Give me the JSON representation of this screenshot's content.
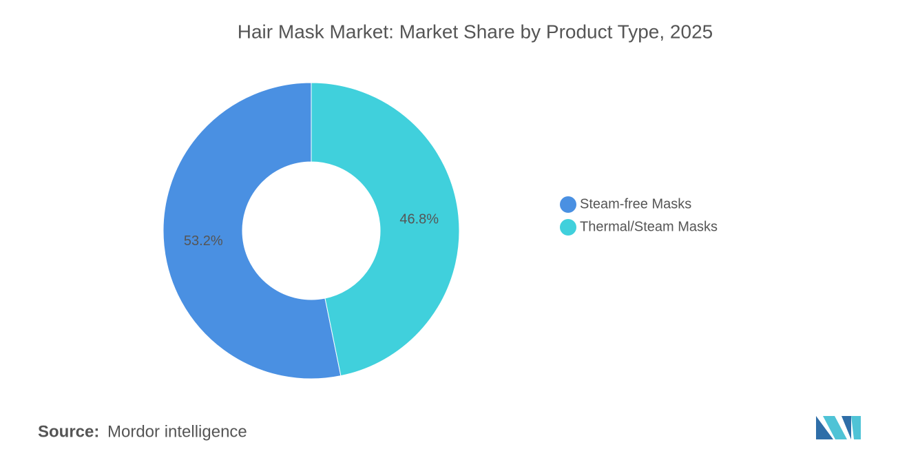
{
  "chart_data": {
    "type": "pie",
    "donut": true,
    "title": "Hair Mask Market: Market Share by Product Type, 2025",
    "categories": [
      "Steam-free Masks",
      "Thermal/Steam Masks"
    ],
    "values": [
      53.2,
      46.8
    ],
    "value_labels": [
      "53.2%",
      "46.8%"
    ],
    "colors": [
      "#4a90e2",
      "#40d0dc"
    ],
    "legend": "right",
    "source_label": "Source:",
    "source": "Mordor intelligence"
  }
}
